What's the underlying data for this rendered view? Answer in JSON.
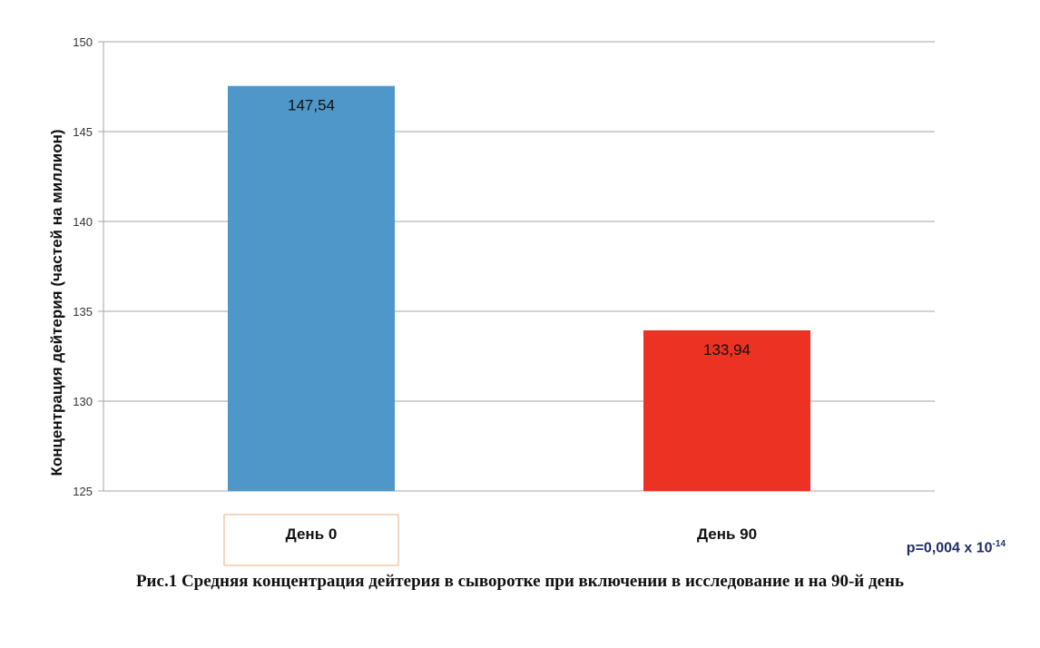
{
  "chart_data": {
    "type": "bar",
    "categories": [
      "День 0",
      "День 90"
    ],
    "values": [
      147.54,
      133.94
    ],
    "value_labels": [
      "147,54",
      "133,94"
    ],
    "colors": [
      "#4f97c8",
      "#ec3323"
    ],
    "ylabel": "Концентрация дейтерия (частей на миллион)",
    "ylim": [
      125,
      150
    ],
    "yticks": [
      125,
      130,
      135,
      140,
      145,
      150
    ],
    "grid": true,
    "highlighted_category": "День 0"
  },
  "annotation": {
    "p_prefix": "p=0,004 x 10",
    "p_exponent": "-14"
  },
  "caption": "Рис.1 Средняя концентрация дейтерия в сыворотке при включении в исследование и на 90-й день"
}
